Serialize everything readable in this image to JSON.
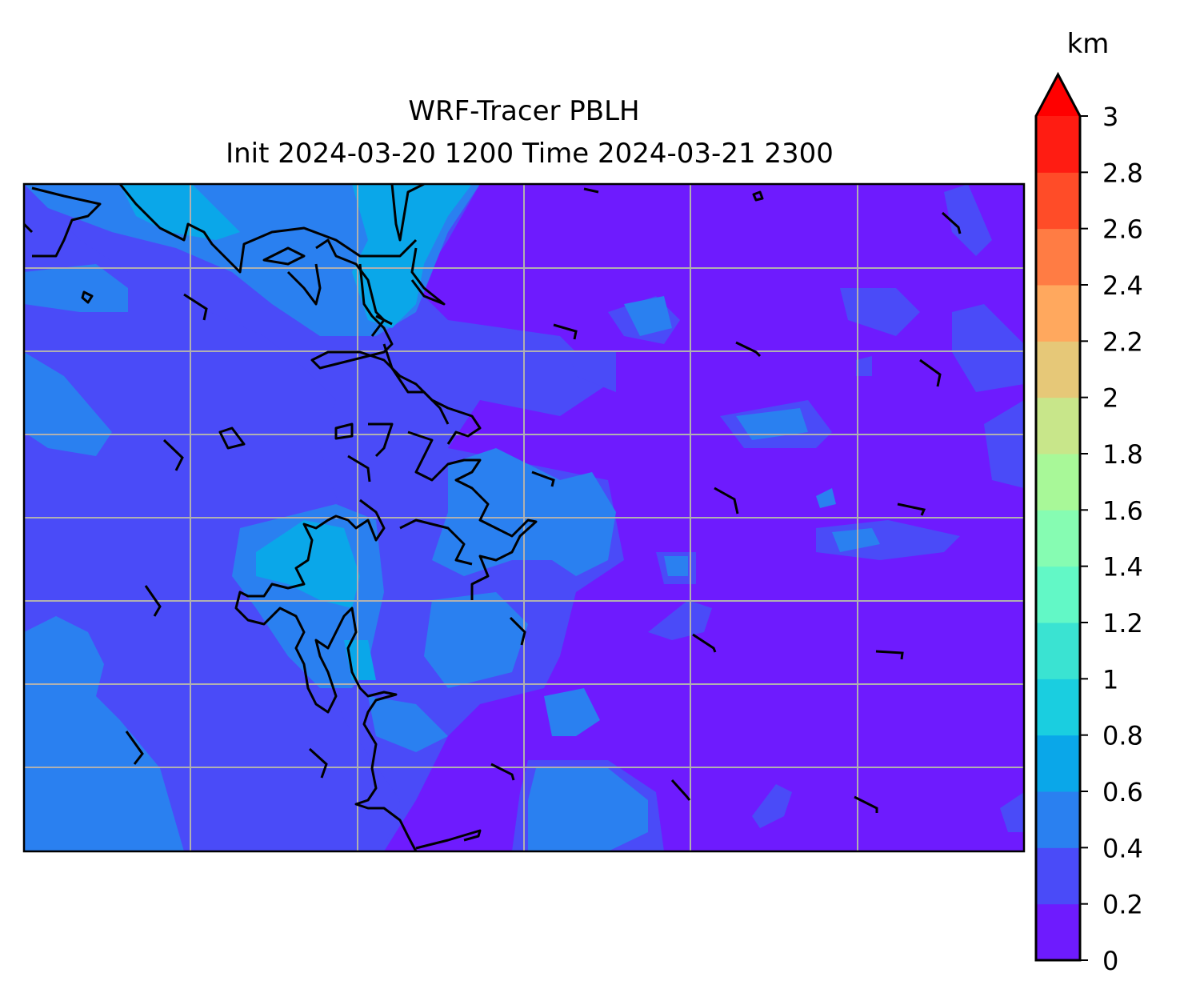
{
  "chart_data": {
    "type": "contour",
    "title": "WRF-Tracer PBLH",
    "subtitle": "Init 2024-03-20 1200 Time 2024-03-21 2300",
    "colorbar": {
      "label": "km",
      "extend": "max",
      "levels": [
        0,
        0.2,
        0.4,
        0.6,
        0.8,
        1,
        1.2,
        1.4,
        1.6,
        1.8,
        2,
        2.2,
        2.4,
        2.6,
        2.8,
        3
      ],
      "tick_labels": [
        "0",
        "0.2",
        "0.4",
        "0.6",
        "0.8",
        "1",
        "1.2",
        "1.4",
        "1.6",
        "1.8",
        "2",
        "2.2",
        "2.4",
        "2.6",
        "2.8",
        "3"
      ],
      "colors": [
        "#6e1bfe",
        "#4a4bf8",
        "#2a80f0",
        "#0aa7e9",
        "#1acee0",
        "#3ae3d2",
        "#62f8c6",
        "#86fcb2",
        "#a8f898",
        "#c8e68a",
        "#e6c878",
        "#ffa85e",
        "#ff7c44",
        "#ff4c28",
        "#ff1c12"
      ],
      "extend_color": "#ff0000"
    },
    "value_range_shown_km": [
      0,
      0.9
    ],
    "grid": true
  }
}
